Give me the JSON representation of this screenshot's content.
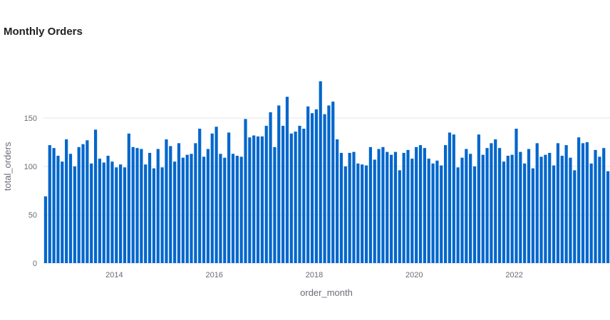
{
  "chart_data": {
    "type": "bar",
    "title": "Monthly Orders",
    "xlabel": "order_month",
    "ylabel": "total_orders",
    "start_month": "2012-08",
    "x_ticks": [
      "2014",
      "2016",
      "2018",
      "2020",
      "2022"
    ],
    "y_ticks": [
      0,
      50,
      100,
      150
    ],
    "ylim": [
      0,
      200
    ],
    "grid": "horizontal",
    "bar_color": "#0066cc",
    "values": [
      69,
      122,
      119,
      111,
      105,
      128,
      113,
      100,
      120,
      123,
      127,
      103,
      138,
      108,
      104,
      111,
      105,
      99,
      102,
      99,
      134,
      120,
      119,
      118,
      102,
      114,
      98,
      118,
      99,
      128,
      121,
      105,
      124,
      109,
      112,
      113,
      124,
      139,
      110,
      118,
      134,
      141,
      113,
      109,
      135,
      113,
      111,
      110,
      149,
      130,
      132,
      131,
      131,
      142,
      156,
      120,
      163,
      142,
      172,
      134,
      136,
      142,
      139,
      162,
      155,
      159,
      188,
      154,
      163,
      167,
      128,
      114,
      100,
      114,
      115,
      103,
      102,
      101,
      120,
      107,
      118,
      120,
      115,
      112,
      115,
      96,
      114,
      117,
      108,
      120,
      122,
      119,
      108,
      103,
      106,
      101,
      122,
      135,
      133,
      99,
      109,
      118,
      113,
      100,
      133,
      112,
      119,
      124,
      128,
      119,
      105,
      111,
      112,
      139,
      115,
      103,
      118,
      98,
      124,
      110,
      112,
      114,
      101,
      124,
      111,
      122,
      109,
      96,
      130,
      124,
      125,
      103,
      117,
      110,
      119,
      95
    ]
  }
}
